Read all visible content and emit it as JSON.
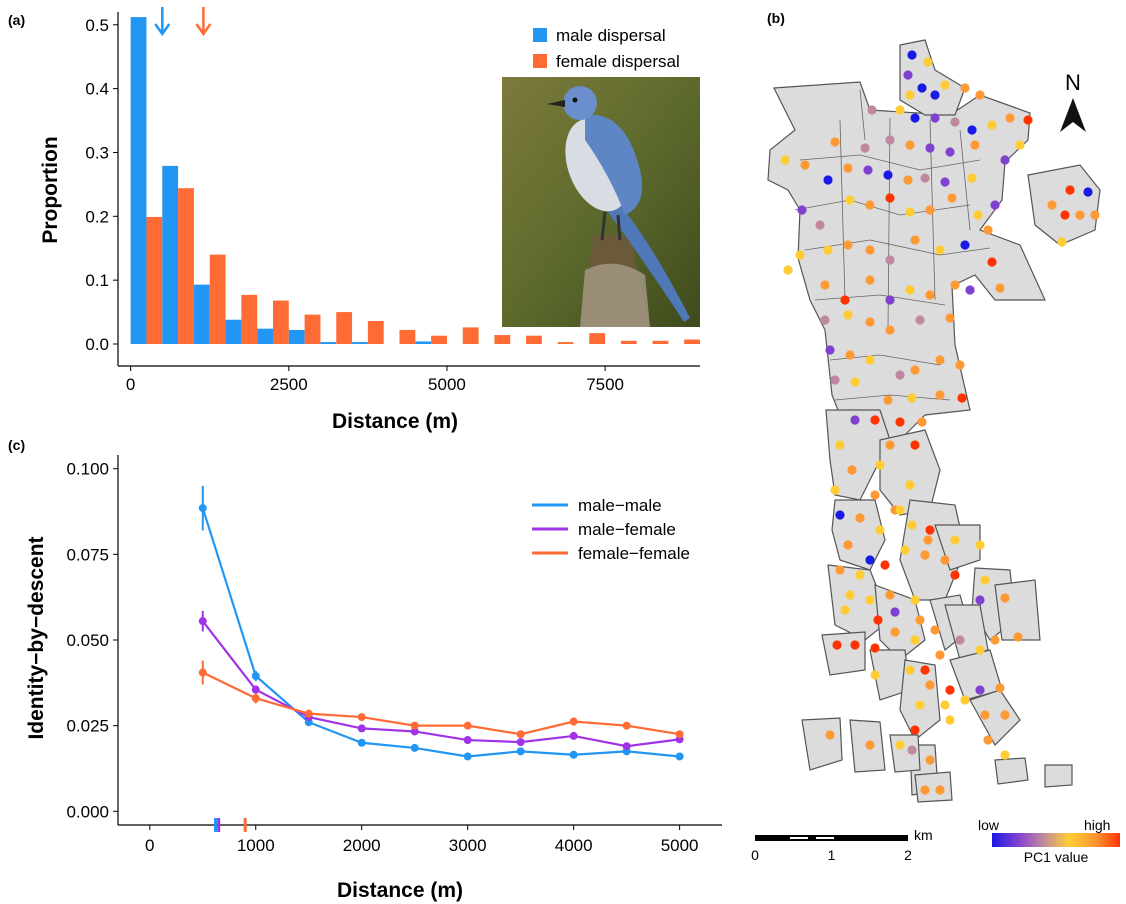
{
  "panels": {
    "a_label": "(a)",
    "b_label": "(b)",
    "c_label": "(c)"
  },
  "chart_data": [
    {
      "type": "bar",
      "panel": "(a)",
      "xlabel": "Distance (m)",
      "ylabel": "Proportion",
      "xlim": [
        -200,
        9000
      ],
      "ylim": [
        0,
        0.52
      ],
      "xticks": [
        0,
        2500,
        5000,
        7500
      ],
      "yticks": [
        0.0,
        0.1,
        0.2,
        0.3,
        0.4,
        0.5
      ],
      "ytick_labels": [
        "0.0",
        "0.1",
        "0.2",
        "0.3",
        "0.4",
        "0.5"
      ],
      "bin_width": 500,
      "x": [
        250,
        750,
        1250,
        1750,
        2250,
        2750,
        3250,
        3750,
        4250,
        4750,
        5250,
        5750,
        6250,
        6750,
        7250,
        7750,
        8250,
        8750
      ],
      "series": [
        {
          "name": "male dispersal",
          "color": "#2196F3",
          "values": [
            0.512,
            0.279,
            0.093,
            0.038,
            0.024,
            0.022,
            0.003,
            0.003,
            0.0,
            0.004,
            0.0,
            0.0,
            0.0,
            0.0,
            0.0,
            0.0,
            0.0,
            0.0
          ]
        },
        {
          "name": "female dispersal",
          "color": "#FF6B35",
          "values": [
            0.199,
            0.244,
            0.14,
            0.077,
            0.068,
            0.046,
            0.05,
            0.036,
            0.022,
            0.013,
            0.026,
            0.014,
            0.013,
            0.003,
            0.017,
            0.005,
            0.005,
            0.007
          ]
        }
      ],
      "arrows": [
        {
          "name": "male dispersal",
          "x": 500,
          "color": "#2196F3"
        },
        {
          "name": "female dispersal",
          "x": 1150,
          "color": "#FF6B35"
        }
      ],
      "inset_photo": "Florida scrub-jay photograph"
    },
    {
      "type": "map",
      "panel": "(b)",
      "north_label": "N",
      "scale_unit": "km",
      "scale_ticks": [
        "0",
        "1",
        "2"
      ],
      "legend_low": "low",
      "legend_high": "high",
      "legend_title": "PC1 value",
      "color_scale": [
        "#1a1ae6",
        "#8040d0",
        "#c088a0",
        "#ffcc33",
        "#ff9933",
        "#ff3300"
      ]
    },
    {
      "type": "line",
      "panel": "(c)",
      "xlabel": "Distance (m)",
      "ylabel": "Identity−by−descent",
      "xlim": [
        -300,
        5400
      ],
      "ylim": [
        -0.004,
        0.104
      ],
      "xticks": [
        0,
        1000,
        2000,
        3000,
        4000,
        5000
      ],
      "yticks": [
        0.0,
        0.025,
        0.05,
        0.075,
        0.1
      ],
      "ytick_labels": [
        "0.000",
        "0.025",
        "0.050",
        "0.075",
        "0.100"
      ],
      "x": [
        500,
        1000,
        1500,
        2000,
        2500,
        3000,
        3500,
        4000,
        4500,
        5000
      ],
      "series": [
        {
          "name": "male−male",
          "color": "#2196F3",
          "values": [
            0.0885,
            0.0395,
            0.026,
            0.02,
            0.0185,
            0.016,
            0.0175,
            0.0165,
            0.0175,
            0.016
          ],
          "errors": [
            0.0065,
            0.0015,
            0.001,
            0.0006,
            0.0006,
            0.0005,
            0.0005,
            0.0005,
            0.0006,
            0.0005
          ]
        },
        {
          "name": "male−female",
          "color": "#A033E8",
          "values": [
            0.0555,
            0.0355,
            0.0275,
            0.0242,
            0.0233,
            0.0208,
            0.0202,
            0.022,
            0.019,
            0.021
          ],
          "errors": [
            0.003,
            0.0012,
            0.0008,
            0.0005,
            0.0005,
            0.0005,
            0.0005,
            0.0005,
            0.0005,
            0.0005
          ]
        },
        {
          "name": "female−female",
          "color": "#FF6B35",
          "values": [
            0.0405,
            0.033,
            0.0285,
            0.0275,
            0.025,
            0.025,
            0.0225,
            0.0262,
            0.025,
            0.0225
          ],
          "errors": [
            0.0035,
            0.0015,
            0.0008,
            0.0006,
            0.0006,
            0.0006,
            0.0006,
            0.0012,
            0.001,
            0.0007
          ]
        }
      ],
      "rug": [
        {
          "color": "#2196F3",
          "x": 620
        },
        {
          "color": "#A033E8",
          "x": 650
        },
        {
          "color": "#FF6B35",
          "x": 900
        }
      ]
    }
  ]
}
